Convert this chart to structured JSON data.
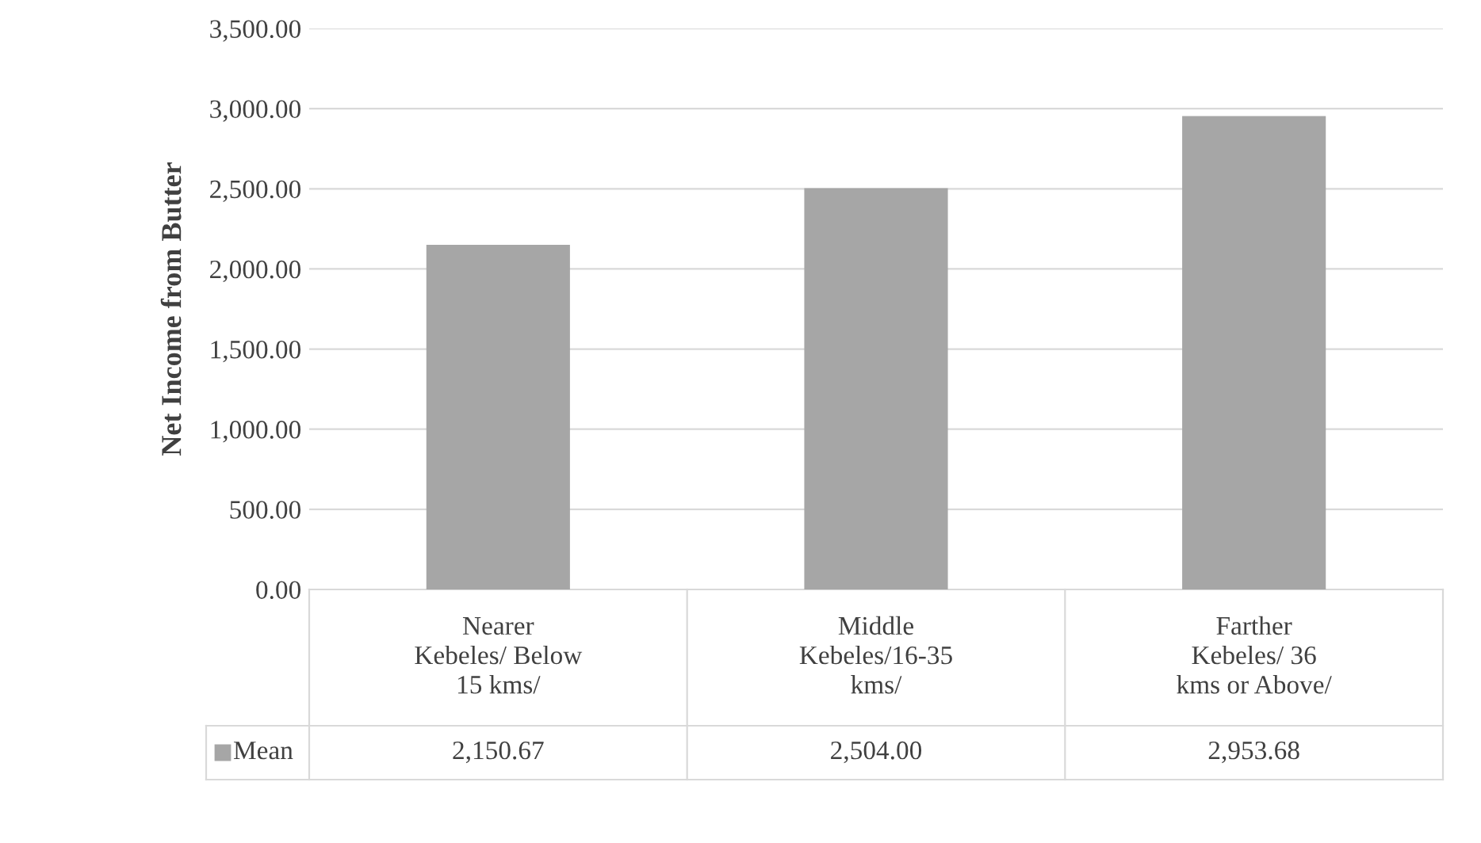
{
  "chart_data": {
    "type": "bar",
    "ylabel": "Net Income from Butter",
    "categories": [
      "Nearer\nKebeles/ Below\n15 kms/",
      "Middle\nKebeles/16-35\nkms/",
      "Farther\nKebeles/ 36\nkms or Above/"
    ],
    "series": [
      {
        "name": "Mean",
        "color": "#a6a6a6",
        "values": [
          2150.67,
          2504.0,
          2953.68
        ],
        "value_labels": [
          "2,150.67",
          "2,504.00",
          "2,953.68"
        ]
      }
    ],
    "ylim": [
      0,
      3500
    ],
    "yticks": [
      {
        "value": 0,
        "label": "0.00"
      },
      {
        "value": 500,
        "label": "500.00"
      },
      {
        "value": 1000,
        "label": "1,000.00"
      },
      {
        "value": 1500,
        "label": "1,500.00"
      },
      {
        "value": 2000,
        "label": "2,000.00"
      },
      {
        "value": 2500,
        "label": "2,500.00"
      },
      {
        "value": 3000,
        "label": "3,000.00"
      },
      {
        "value": 3500,
        "label": "3,500.00"
      }
    ],
    "grid": "y"
  }
}
